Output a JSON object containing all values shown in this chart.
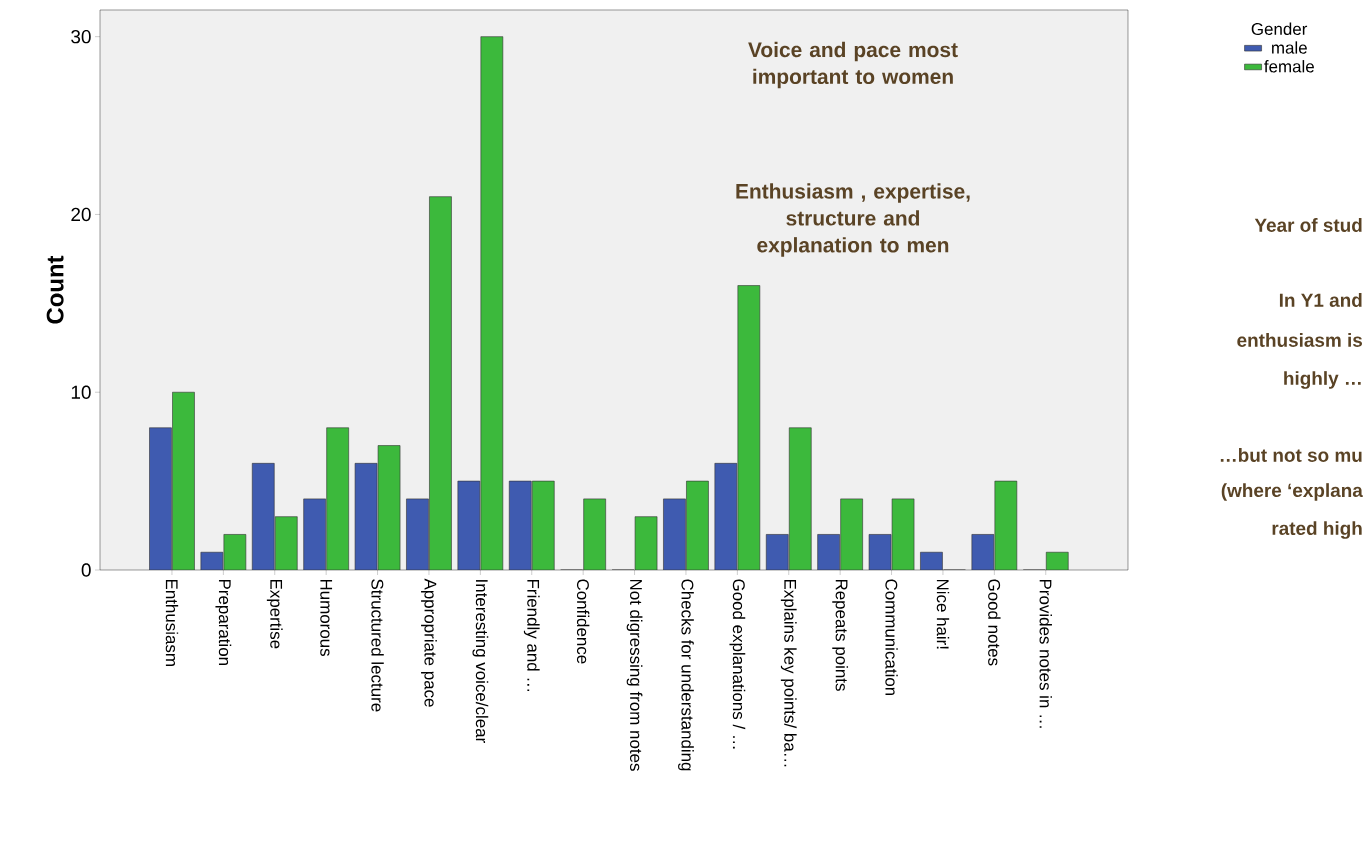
{
  "chart_data": {
    "type": "bar",
    "ylabel": "Count",
    "legend_title": "Gender",
    "legend": "top right",
    "ylim": [
      0,
      31.5
    ],
    "yticks": [
      0,
      10,
      20,
      30
    ],
    "categories": [
      "Enthusiasm",
      "Preparation",
      "Expertise",
      "Humorous",
      "Structured lecture",
      "Appropriate pace",
      "Interesting voice/clear",
      "Friendly and …",
      "Confidence",
      "Not digressing from notes",
      "Checks for understanding",
      "Good explanations / …",
      "Explains key points/ ba…",
      "Repeats points",
      "Communication",
      "Nice hair!",
      "Good notes",
      "Provides notes in …"
    ],
    "series": [
      {
        "name": "male",
        "color": "#3f5bb0",
        "values": [
          8,
          1,
          6,
          4,
          6,
          4,
          5,
          5,
          0,
          0,
          4,
          6,
          2,
          2,
          2,
          1,
          2,
          0
        ]
      },
      {
        "name": "female",
        "color": "#3cb93c",
        "values": [
          10,
          2,
          3,
          8,
          7,
          21,
          30,
          5,
          4,
          3,
          5,
          16,
          8,
          4,
          4,
          0,
          5,
          1
        ]
      }
    ],
    "annotations": [
      "Voice and pace most important to women",
      "Enthusiasm , expertise, structure and explanation to men",
      "Year of stud",
      "In Y1 and",
      "enthusiasm is",
      "highly …",
      "…but not so mu",
      "(where ‘explana",
      "rated high"
    ]
  }
}
